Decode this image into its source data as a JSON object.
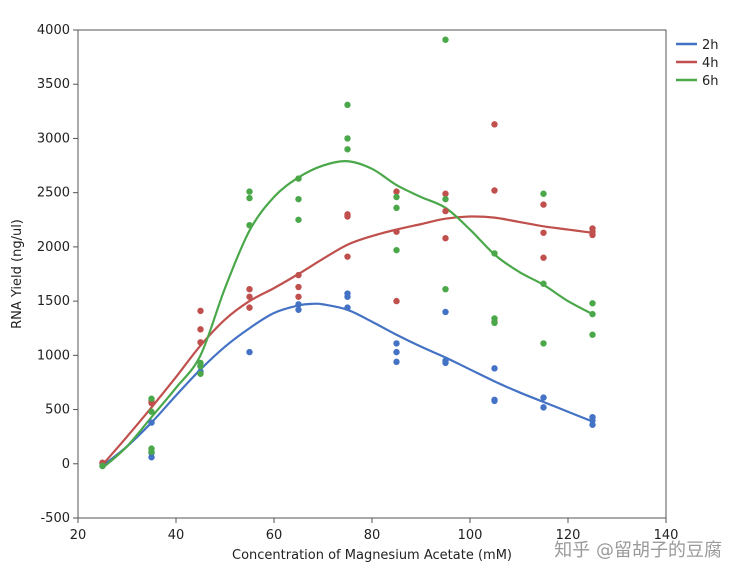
{
  "chart_data": {
    "type": "scatter",
    "title": "",
    "xlabel": "Concentration of Magnesium Acetate (mM)",
    "ylabel": "RNA Yield (ng/ul)",
    "xlim": [
      20,
      140
    ],
    "ylim": [
      -500,
      4000
    ],
    "x_ticks": [
      20,
      40,
      60,
      80,
      100,
      120,
      140
    ],
    "y_ticks": [
      -500,
      0,
      500,
      1000,
      1500,
      2000,
      2500,
      3000,
      3500,
      4000
    ],
    "grid": false,
    "legend_position": "top-right",
    "series": [
      {
        "name": "2h",
        "color": "#4472c4",
        "points": [
          [
            25,
            0
          ],
          [
            25,
            -20
          ],
          [
            35,
            60
          ],
          [
            35,
            100
          ],
          [
            35,
            380
          ],
          [
            45,
            850
          ],
          [
            45,
            900
          ],
          [
            55,
            1030
          ],
          [
            65,
            1420
          ],
          [
            65,
            1470
          ],
          [
            75,
            1440
          ],
          [
            75,
            1540
          ],
          [
            75,
            1570
          ],
          [
            85,
            940
          ],
          [
            85,
            1030
          ],
          [
            85,
            1110
          ],
          [
            95,
            930
          ],
          [
            95,
            950
          ],
          [
            95,
            1400
          ],
          [
            105,
            580
          ],
          [
            105,
            590
          ],
          [
            105,
            880
          ],
          [
            115,
            520
          ],
          [
            115,
            610
          ],
          [
            125,
            360
          ],
          [
            125,
            400
          ],
          [
            125,
            430
          ]
        ],
        "fit": [
          [
            25,
            -20
          ],
          [
            30,
            160
          ],
          [
            35,
            380
          ],
          [
            40,
            630
          ],
          [
            45,
            870
          ],
          [
            50,
            1080
          ],
          [
            55,
            1250
          ],
          [
            60,
            1390
          ],
          [
            65,
            1460
          ],
          [
            68,
            1475
          ],
          [
            70,
            1470
          ],
          [
            75,
            1420
          ],
          [
            80,
            1310
          ],
          [
            85,
            1190
          ],
          [
            90,
            1080
          ],
          [
            95,
            980
          ],
          [
            100,
            870
          ],
          [
            105,
            760
          ],
          [
            110,
            660
          ],
          [
            115,
            570
          ],
          [
            120,
            480
          ],
          [
            125,
            390
          ]
        ]
      },
      {
        "name": "4h",
        "color": "#c0504d",
        "points": [
          [
            25,
            10
          ],
          [
            35,
            560
          ],
          [
            35,
            580
          ],
          [
            45,
            1120
          ],
          [
            45,
            1240
          ],
          [
            45,
            1410
          ],
          [
            55,
            1440
          ],
          [
            55,
            1540
          ],
          [
            55,
            1610
          ],
          [
            65,
            1540
          ],
          [
            65,
            1630
          ],
          [
            65,
            1740
          ],
          [
            75,
            1910
          ],
          [
            75,
            2280
          ],
          [
            75,
            2300
          ],
          [
            85,
            1500
          ],
          [
            85,
            2140
          ],
          [
            85,
            2510
          ],
          [
            95,
            2080
          ],
          [
            95,
            2330
          ],
          [
            95,
            2490
          ],
          [
            105,
            1310
          ],
          [
            105,
            2520
          ],
          [
            105,
            3130
          ],
          [
            115,
            1900
          ],
          [
            115,
            2130
          ],
          [
            115,
            2390
          ],
          [
            125,
            2110
          ],
          [
            125,
            2140
          ],
          [
            125,
            2170
          ]
        ],
        "fit": [
          [
            25,
            -10
          ],
          [
            30,
            250
          ],
          [
            35,
            520
          ],
          [
            40,
            800
          ],
          [
            45,
            1090
          ],
          [
            50,
            1330
          ],
          [
            55,
            1500
          ],
          [
            60,
            1620
          ],
          [
            65,
            1750
          ],
          [
            70,
            1890
          ],
          [
            75,
            2020
          ],
          [
            80,
            2100
          ],
          [
            85,
            2160
          ],
          [
            90,
            2210
          ],
          [
            95,
            2260
          ],
          [
            100,
            2280
          ],
          [
            105,
            2270
          ],
          [
            110,
            2230
          ],
          [
            115,
            2190
          ],
          [
            120,
            2160
          ],
          [
            125,
            2130
          ]
        ]
      },
      {
        "name": "6h",
        "color": "#4aa84a",
        "points": [
          [
            25,
            -20
          ],
          [
            35,
            110
          ],
          [
            35,
            140
          ],
          [
            35,
            480
          ],
          [
            35,
            600
          ],
          [
            45,
            830
          ],
          [
            45,
            900
          ],
          [
            45,
            930
          ],
          [
            55,
            2200
          ],
          [
            55,
            2450
          ],
          [
            55,
            2510
          ],
          [
            65,
            2250
          ],
          [
            65,
            2440
          ],
          [
            65,
            2630
          ],
          [
            75,
            2900
          ],
          [
            75,
            3000
          ],
          [
            75,
            3310
          ],
          [
            85,
            1970
          ],
          [
            85,
            2360
          ],
          [
            85,
            2460
          ],
          [
            95,
            1610
          ],
          [
            95,
            2440
          ],
          [
            95,
            3910
          ],
          [
            105,
            1300
          ],
          [
            105,
            1340
          ],
          [
            105,
            1940
          ],
          [
            115,
            1110
          ],
          [
            115,
            1660
          ],
          [
            115,
            2490
          ],
          [
            125,
            1190
          ],
          [
            125,
            1380
          ],
          [
            125,
            1480
          ]
        ],
        "fit": [
          [
            25,
            -40
          ],
          [
            30,
            160
          ],
          [
            35,
            430
          ],
          [
            40,
            700
          ],
          [
            45,
            1000
          ],
          [
            50,
            1620
          ],
          [
            55,
            2150
          ],
          [
            60,
            2460
          ],
          [
            65,
            2640
          ],
          [
            70,
            2750
          ],
          [
            75,
            2790
          ],
          [
            80,
            2720
          ],
          [
            85,
            2570
          ],
          [
            90,
            2460
          ],
          [
            95,
            2360
          ],
          [
            100,
            2160
          ],
          [
            105,
            1930
          ],
          [
            110,
            1770
          ],
          [
            115,
            1650
          ],
          [
            120,
            1500
          ],
          [
            125,
            1380
          ]
        ]
      }
    ]
  },
  "watermark": "知乎 @留胡子的豆腐"
}
